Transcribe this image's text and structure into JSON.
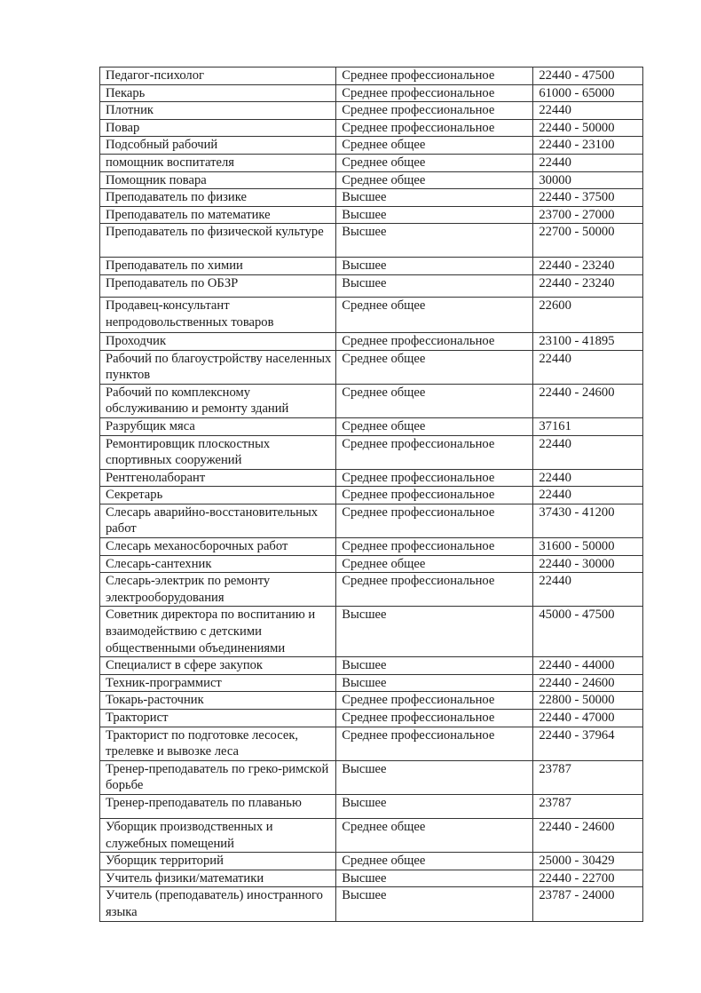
{
  "table": {
    "rows": [
      [
        "Педагог-психолог",
        "Среднее профессиональное",
        "22440 - 47500"
      ],
      [
        "Пекарь",
        "Среднее профессиональное",
        "61000 - 65000"
      ],
      [
        "Плотник",
        "Среднее профессиональное",
        "22440"
      ],
      [
        "Повар",
        "Среднее профессиональное",
        "22440 - 50000"
      ],
      [
        "Подсобный рабочий",
        "Среднее общее",
        "22440 - 23100"
      ],
      [
        "помощник воспитателя",
        "Среднее общее",
        "22440"
      ],
      [
        "Помощник повара",
        "Среднее общее",
        "30000"
      ],
      [
        "Преподаватель по физике",
        "Высшее",
        "22440 - 37500"
      ],
      [
        "Преподаватель по математике",
        "Высшее",
        "23700 - 27000"
      ],
      [
        "Преподаватель по физической культуре",
        "Высшее",
        "22700 - 50000"
      ],
      [
        "Преподаватель по химии",
        "Высшее",
        "22440 - 23240"
      ],
      [
        "Преподаватель по ОБЗР",
        "Высшее",
        "22440 - 23240"
      ],
      [
        "Продавец-консультант непродовольственных товаров",
        "Среднее общее",
        "22600"
      ],
      [
        "Проходчик",
        "Среднее профессиональное",
        "23100 - 41895"
      ],
      [
        "Рабочий по благоустройству населенных пунктов",
        "Среднее общее",
        "22440"
      ],
      [
        "Рабочий по комплексному обслуживанию и ремонту зданий",
        "Среднее общее",
        "22440 - 24600"
      ],
      [
        "Разрубщик мяса",
        "Среднее общее",
        "37161"
      ],
      [
        "Ремонтировщик плоскостных спортивных сооружений",
        "Среднее профессиональное",
        "22440"
      ],
      [
        "Рентгенолаборант",
        "Среднее профессиональное",
        "22440"
      ],
      [
        "Секретарь",
        "Среднее профессиональное",
        "22440"
      ],
      [
        "Слесарь аварийно-восстановительных работ",
        "Среднее профессиональное",
        "37430 - 41200"
      ],
      [
        "Слесарь механосборочных работ",
        "Среднее профессиональное",
        "31600 - 50000"
      ],
      [
        "Слесарь-сантехник",
        "Среднее  общее",
        "22440 - 30000"
      ],
      [
        "Слесарь-электрик по ремонту электрооборудования",
        "Среднее профессиональное",
        "22440"
      ],
      [
        "Советник директора по воспитанию и взаимодействию с детскими общественными объединениями",
        "Высшее",
        "45000 - 47500"
      ],
      [
        "Специалист в сфере закупок",
        "Высшее",
        "22440 - 44000"
      ],
      [
        "Техник-программист",
        "Высшее",
        "22440 - 24600"
      ],
      [
        "Токарь-расточник",
        "Среднее профессиональное",
        "22800 - 50000"
      ],
      [
        "Тракторист",
        "Среднее профессиональное",
        "22440 - 47000"
      ],
      [
        "Тракторист по подготовке лесосек, трелевке и вывозке леса",
        "Среднее профессиональное",
        "22440 - 37964"
      ],
      [
        "Тренер-преподаватель по греко-римской борьбе",
        "Высшее",
        "23787"
      ],
      [
        "Тренер-преподаватель по плаванью",
        "Высшее",
        "23787"
      ],
      [
        "Уборщик производственных и служебных помещений",
        "Среднее общее",
        "22440 - 24600"
      ],
      [
        "Уборщик территорий",
        "Среднее общее",
        "25000 - 30429"
      ],
      [
        "Учитель физики/математики",
        "Высшее",
        "22440 - 22700"
      ],
      [
        "Учитель (преподаватель) иностранного языка",
        "Высшее",
        "23787 - 24000"
      ]
    ]
  }
}
